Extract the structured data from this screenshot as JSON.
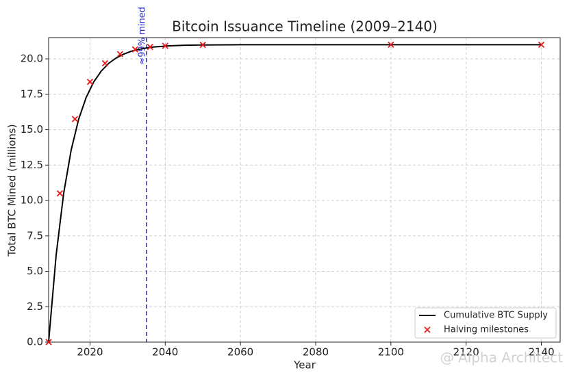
{
  "chart_data": {
    "type": "line",
    "title": "Bitcoin Issuance Timeline (2009–2140)",
    "x_label": "Year",
    "y_label": "Total BTC Mined (millions)",
    "xlim": [
      2009,
      2145
    ],
    "ylim": [
      0,
      21.5
    ],
    "xticks": [
      2020,
      2040,
      2060,
      2080,
      2100,
      2120,
      2140
    ],
    "yticks": [
      {
        "value": 0,
        "label": "0.0"
      },
      2.5,
      {
        "value": 5,
        "label": "5.0"
      },
      7.5,
      {
        "value": 10,
        "label": "10.0"
      },
      12.5,
      {
        "value": 15,
        "label": "15.0"
      },
      17.5,
      {
        "value": 20,
        "label": "20.0"
      }
    ],
    "grid": true,
    "legend": "lower right",
    "series": [
      {
        "name": "Cumulative BTC Supply",
        "color": "#000000",
        "type": "line",
        "x": [
          2009,
          2011,
          2013,
          2015,
          2017,
          2019,
          2021,
          2023,
          2025,
          2027,
          2029,
          2031,
          2033,
          2035,
          2037,
          2039,
          2041,
          2045,
          2050,
          2060,
          2080,
          2100,
          2120,
          2140
        ],
        "values": [
          0,
          6.15,
          10.5,
          13.57,
          15.75,
          17.29,
          18.375,
          19.14,
          19.69,
          20.07,
          20.34,
          20.54,
          20.67,
          20.77,
          20.84,
          20.88,
          20.92,
          20.96,
          20.98,
          21,
          21,
          21,
          21,
          21
        ]
      },
      {
        "name": "Halving milestones",
        "color": "#e8191a",
        "type": "scatter",
        "x": [
          2009,
          2012,
          2016,
          2020,
          2024,
          2028,
          2032,
          2036,
          2040,
          2050,
          2100,
          2140
        ],
        "values": [
          0,
          10.5,
          15.75,
          18.375,
          19.6875,
          20.34,
          20.67,
          20.84,
          20.92,
          20.99,
          21,
          21
        ]
      }
    ],
    "vline": {
      "x": 2035,
      "label": "≈99% mined",
      "color": "#2b2bd6"
    },
    "watermark": "@ Alpha Architect"
  }
}
